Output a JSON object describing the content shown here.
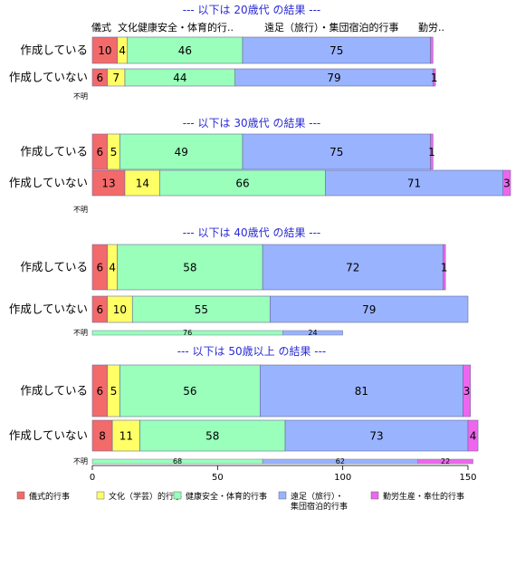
{
  "chart_data": {
    "type": "bar",
    "orientation": "horizontal",
    "stacked": true,
    "x_ticks": [
      0,
      50,
      100,
      150
    ],
    "xlim": [
      0,
      150
    ],
    "column_headers": [
      "儀式",
      "文化..",
      "健康安全・体育的行..",
      "遠足（旅行）・集団宿泊的行事",
      "勤労.."
    ],
    "series": [
      {
        "name": "儀式的行事",
        "color": "#f36a6a"
      },
      {
        "name": "文化（学芸）的行事",
        "color": "#ffff66"
      },
      {
        "name": "健康安全・体育的行事",
        "color": "#99ffbb"
      },
      {
        "name": "遠足（旅行）・\n集団宿泊的行事",
        "color": "#99b3ff"
      },
      {
        "name": "勤労生産・奉仕的行事",
        "color": "#ee66ee"
      }
    ],
    "panels": [
      {
        "title": "--- 以下は 20歳代 の結果 ---",
        "rows": [
          {
            "category": "作成している",
            "values": [
              10,
              4,
              46,
              75,
              1
            ],
            "labels": [
              "10",
              "4",
              "46",
              "75",
              ""
            ]
          },
          {
            "category": "作成していない",
            "values": [
              6,
              7,
              44,
              79,
              1
            ],
            "labels": [
              "6",
              "7",
              "44",
              "79",
              "1"
            ]
          }
        ],
        "unknown_label": "不明",
        "unknown_values": [],
        "unknown_labels": []
      },
      {
        "title": "--- 以下は 30歳代 の結果 ---",
        "rows": [
          {
            "category": "作成している",
            "values": [
              6,
              5,
              49,
              75,
              1
            ],
            "labels": [
              "6",
              "5",
              "49",
              "75",
              "1"
            ]
          },
          {
            "category": "作成していない",
            "values": [
              13,
              14,
              66,
              71,
              3
            ],
            "labels": [
              "13",
              "14",
              "66",
              "71",
              "3"
            ]
          }
        ],
        "unknown_label": "不明",
        "unknown_values": [],
        "unknown_labels": []
      },
      {
        "title": "--- 以下は 40歳代 の結果 ---",
        "rows": [
          {
            "category": "作成している",
            "values": [
              6,
              4,
              58,
              72,
              1
            ],
            "labels": [
              "6",
              "4",
              "58",
              "72",
              "1"
            ]
          },
          {
            "category": "作成していない",
            "values": [
              6,
              10,
              55,
              79,
              0
            ],
            "labels": [
              "6",
              "10",
              "55",
              "79",
              ""
            ]
          }
        ],
        "unknown_label": "不明",
        "unknown_values": [
          0,
          0,
          76,
          24,
          0
        ],
        "unknown_labels": [
          "",
          "",
          "76",
          "24",
          ""
        ]
      },
      {
        "title": "--- 以下は 50歳以上 の結果 ---",
        "rows": [
          {
            "category": "作成している",
            "values": [
              6,
              5,
              56,
              81,
              3
            ],
            "labels": [
              "6",
              "5",
              "56",
              "81",
              "3"
            ]
          },
          {
            "category": "作成していない",
            "values": [
              8,
              11,
              58,
              73,
              4
            ],
            "labels": [
              "8",
              "11",
              "58",
              "73",
              "4"
            ]
          }
        ],
        "unknown_label": "不明",
        "unknown_values": [
          0,
          0,
          68,
          62,
          22
        ],
        "unknown_labels": [
          "",
          "",
          "68",
          "62",
          "22"
        ]
      }
    ]
  }
}
